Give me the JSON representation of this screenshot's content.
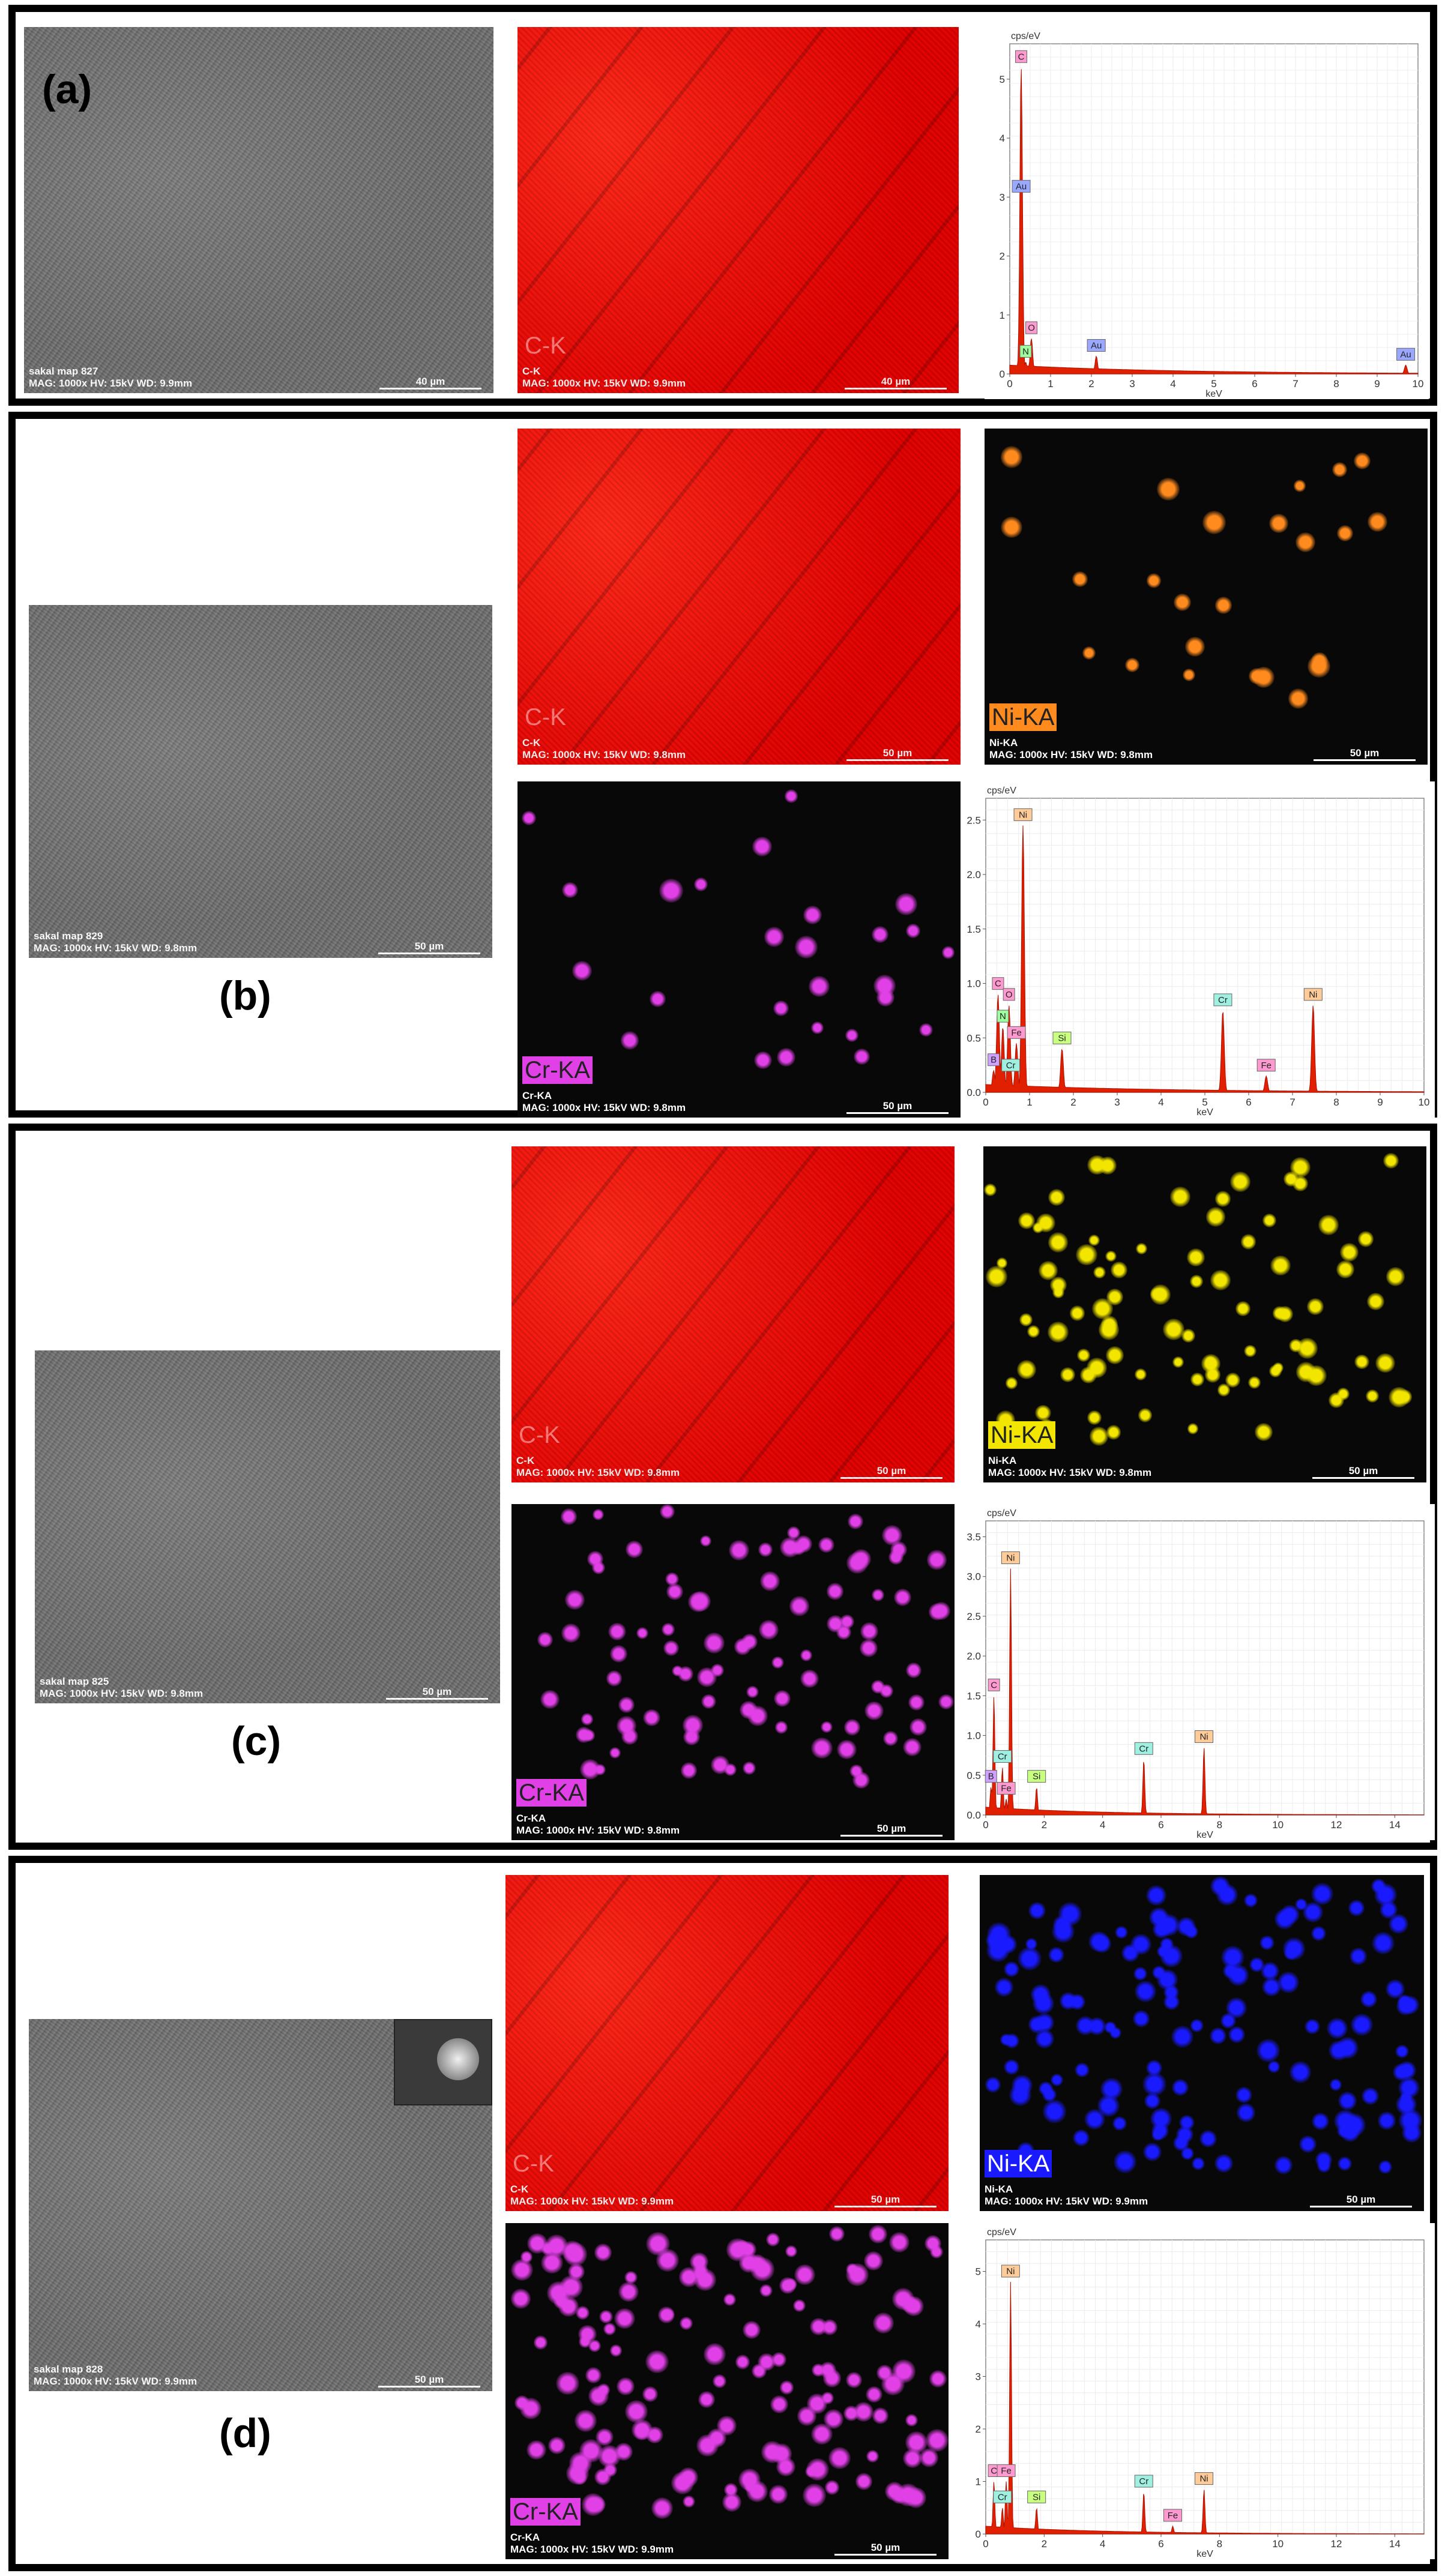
{
  "panels": [
    {
      "label": "(a)",
      "sem": {
        "line1": "sakal map 827",
        "line2": "MAG: 1000x  HV: 15kV  WD: 9.9mm",
        "scale": "40 µm"
      },
      "maps": [
        {
          "big": "C-K",
          "line1": "C-K",
          "line2": "MAG: 1000x  HV: 15kV  WD: 9.9mm",
          "scale": "40 µm",
          "kind": "red"
        }
      ],
      "spectrum": {
        "unit": "cps/eV",
        "xlabel": "keV",
        "xticks": [
          "0",
          "1",
          "2",
          "3",
          "4",
          "5",
          "6",
          "7",
          "8",
          "9",
          "10"
        ],
        "yticks": [
          "0",
          "1",
          "2",
          "3",
          "4",
          "5"
        ]
      }
    },
    {
      "label": "(b)",
      "sem": {
        "line1": "sakal map 829",
        "line2": "MAG: 1000x  HV: 15kV  WD: 9.8mm",
        "scale": "50 µm"
      },
      "maps": [
        {
          "big": "C-K",
          "line1": "C-K",
          "line2": "MAG: 1000x  HV: 15kV  WD: 9.8mm",
          "scale": "50 µm",
          "kind": "red"
        },
        {
          "big": "Ni-KA",
          "line1": "Ni-KA",
          "line2": "MAG: 1000x  HV: 15kV  WD: 9.8mm",
          "scale": "50 µm",
          "kind": "orange"
        },
        {
          "big": "Cr-KA",
          "line1": "Cr-KA",
          "line2": "MAG: 1000x  HV: 15kV  WD: 9.8mm",
          "scale": "50 µm",
          "kind": "magenta"
        }
      ],
      "spectrum": {
        "unit": "cps/eV",
        "xlabel": "keV",
        "xticks": [
          "0",
          "1",
          "2",
          "3",
          "4",
          "5",
          "6",
          "7",
          "8",
          "9",
          "10"
        ],
        "yticks": [
          "0.0",
          "0.5",
          "1.0",
          "1.5",
          "2.0",
          "2.5"
        ]
      }
    },
    {
      "label": "(c)",
      "sem": {
        "line1": "sakal map 825",
        "line2": "MAG: 1000x HV: 15kV  WD: 9.8mm",
        "scale": "50 µm"
      },
      "maps": [
        {
          "big": "C-K",
          "line1": "C-K",
          "line2": "MAG: 1000x HV: 15kV  WD: 9.8mm",
          "scale": "50 µm",
          "kind": "red"
        },
        {
          "big": "Ni-KA",
          "line1": "Ni-KA",
          "line2": "MAG: 1000x HV: 15kV  WD: 9.8mm",
          "scale": "50 µm",
          "kind": "yellow"
        },
        {
          "big": "Cr-KA",
          "line1": "Cr-KA",
          "line2": "MAG: 1000x HV: 15kV  WD: 9.8mm",
          "scale": "50 µm",
          "kind": "magenta"
        }
      ],
      "spectrum": {
        "unit": "cps/eV",
        "xlabel": "keV",
        "xticks": [
          "0",
          "2",
          "4",
          "6",
          "8",
          "10",
          "12",
          "14"
        ],
        "yticks": [
          "0.0",
          "0.5",
          "1.0",
          "1.5",
          "2.0",
          "2.5",
          "3.0",
          "3.5"
        ]
      }
    },
    {
      "label": "(d)",
      "sem": {
        "line1": "sakal map 828",
        "line2": "MAG: 1000x HV: 15kV  WD: 9.9mm",
        "scale": "50 µm"
      },
      "maps": [
        {
          "big": "C-K",
          "line1": "C-K",
          "line2": "MAG: 1000x HV: 15kV  WD: 9.9mm",
          "scale": "50 µm",
          "kind": "red"
        },
        {
          "big": "Ni-KA",
          "line1": "Ni-KA",
          "line2": "MAG: 1000x HV: 15kV  WD: 9.9mm",
          "scale": "50 µm",
          "kind": "blue"
        },
        {
          "big": "Cr-KA",
          "line1": "Cr-KA",
          "line2": "MAG: 1000x HV: 15kV  WD: 9.9mm",
          "scale": "50 µm",
          "kind": "magenta"
        }
      ],
      "spectrum": {
        "unit": "cps/eV",
        "xlabel": "keV",
        "xticks": [
          "0",
          "2",
          "4",
          "6",
          "8",
          "10",
          "12",
          "14"
        ],
        "yticks": [
          "0",
          "1",
          "2",
          "3",
          "4",
          "5"
        ]
      }
    }
  ],
  "colors": {
    "c_k": "#e60000",
    "ni_orange": "#ff8a1e",
    "ni_yellow": "#f2e600",
    "ni_blue": "#1a1aff",
    "cr_magenta": "#e040e6",
    "spectrum_fill": "#e02000"
  },
  "chart_data": [
    {
      "type": "line",
      "xlabel": "keV",
      "ylabel": "cps/eV",
      "ylim": [
        0,
        5.6
      ],
      "xlim": [
        0,
        10
      ],
      "peaks": [
        {
          "x": 0.28,
          "y": 5.2,
          "label": "C"
        },
        {
          "x": 0.28,
          "y": 3.0,
          "label": "Au"
        },
        {
          "x": 0.53,
          "y": 0.6,
          "label": "O"
        },
        {
          "x": 0.39,
          "y": 0.2,
          "label": "N"
        },
        {
          "x": 2.12,
          "y": 0.3,
          "label": "Au"
        },
        {
          "x": 9.7,
          "y": 0.15,
          "label": "Au"
        }
      ]
    },
    {
      "type": "line",
      "xlabel": "keV",
      "ylabel": "cps/eV",
      "ylim": [
        0,
        2.7
      ],
      "xlim": [
        0,
        10
      ],
      "peaks": [
        {
          "x": 0.85,
          "y": 2.45,
          "label": "Ni"
        },
        {
          "x": 0.28,
          "y": 0.9,
          "label": "C"
        },
        {
          "x": 0.53,
          "y": 0.8,
          "label": "O"
        },
        {
          "x": 0.39,
          "y": 0.6,
          "label": "N"
        },
        {
          "x": 0.7,
          "y": 0.45,
          "label": "Fe"
        },
        {
          "x": 0.18,
          "y": 0.2,
          "label": "B"
        },
        {
          "x": 0.57,
          "y": 0.15,
          "label": "Cr"
        },
        {
          "x": 1.74,
          "y": 0.4,
          "label": "Si"
        },
        {
          "x": 5.41,
          "y": 0.75,
          "label": "Cr"
        },
        {
          "x": 6.4,
          "y": 0.15,
          "label": "Fe"
        },
        {
          "x": 7.47,
          "y": 0.8,
          "label": "Ni"
        }
      ]
    },
    {
      "type": "line",
      "xlabel": "keV",
      "ylabel": "cps/eV",
      "ylim": [
        0,
        3.7
      ],
      "xlim": [
        0,
        15
      ],
      "peaks": [
        {
          "x": 0.85,
          "y": 3.1,
          "label": "Ni"
        },
        {
          "x": 0.28,
          "y": 1.5,
          "label": "C"
        },
        {
          "x": 0.57,
          "y": 0.6,
          "label": "Cr"
        },
        {
          "x": 0.18,
          "y": 0.35,
          "label": "B"
        },
        {
          "x": 0.7,
          "y": 0.2,
          "label": "Fe"
        },
        {
          "x": 1.74,
          "y": 0.35,
          "label": "Si"
        },
        {
          "x": 5.41,
          "y": 0.7,
          "label": "Cr"
        },
        {
          "x": 7.47,
          "y": 0.85,
          "label": "Ni"
        }
      ]
    },
    {
      "type": "line",
      "xlabel": "keV",
      "ylabel": "cps/eV",
      "ylim": [
        0,
        5.6
      ],
      "xlim": [
        0,
        15
      ],
      "peaks": [
        {
          "x": 0.85,
          "y": 4.8,
          "label": "Ni"
        },
        {
          "x": 0.28,
          "y": 1.0,
          "label": "C"
        },
        {
          "x": 0.7,
          "y": 1.0,
          "label": "Fe"
        },
        {
          "x": 0.57,
          "y": 0.5,
          "label": "Cr"
        },
        {
          "x": 1.74,
          "y": 0.5,
          "label": "Si"
        },
        {
          "x": 5.41,
          "y": 0.8,
          "label": "Cr"
        },
        {
          "x": 6.4,
          "y": 0.15,
          "label": "Fe"
        },
        {
          "x": 7.47,
          "y": 0.85,
          "label": "Ni"
        }
      ]
    }
  ]
}
